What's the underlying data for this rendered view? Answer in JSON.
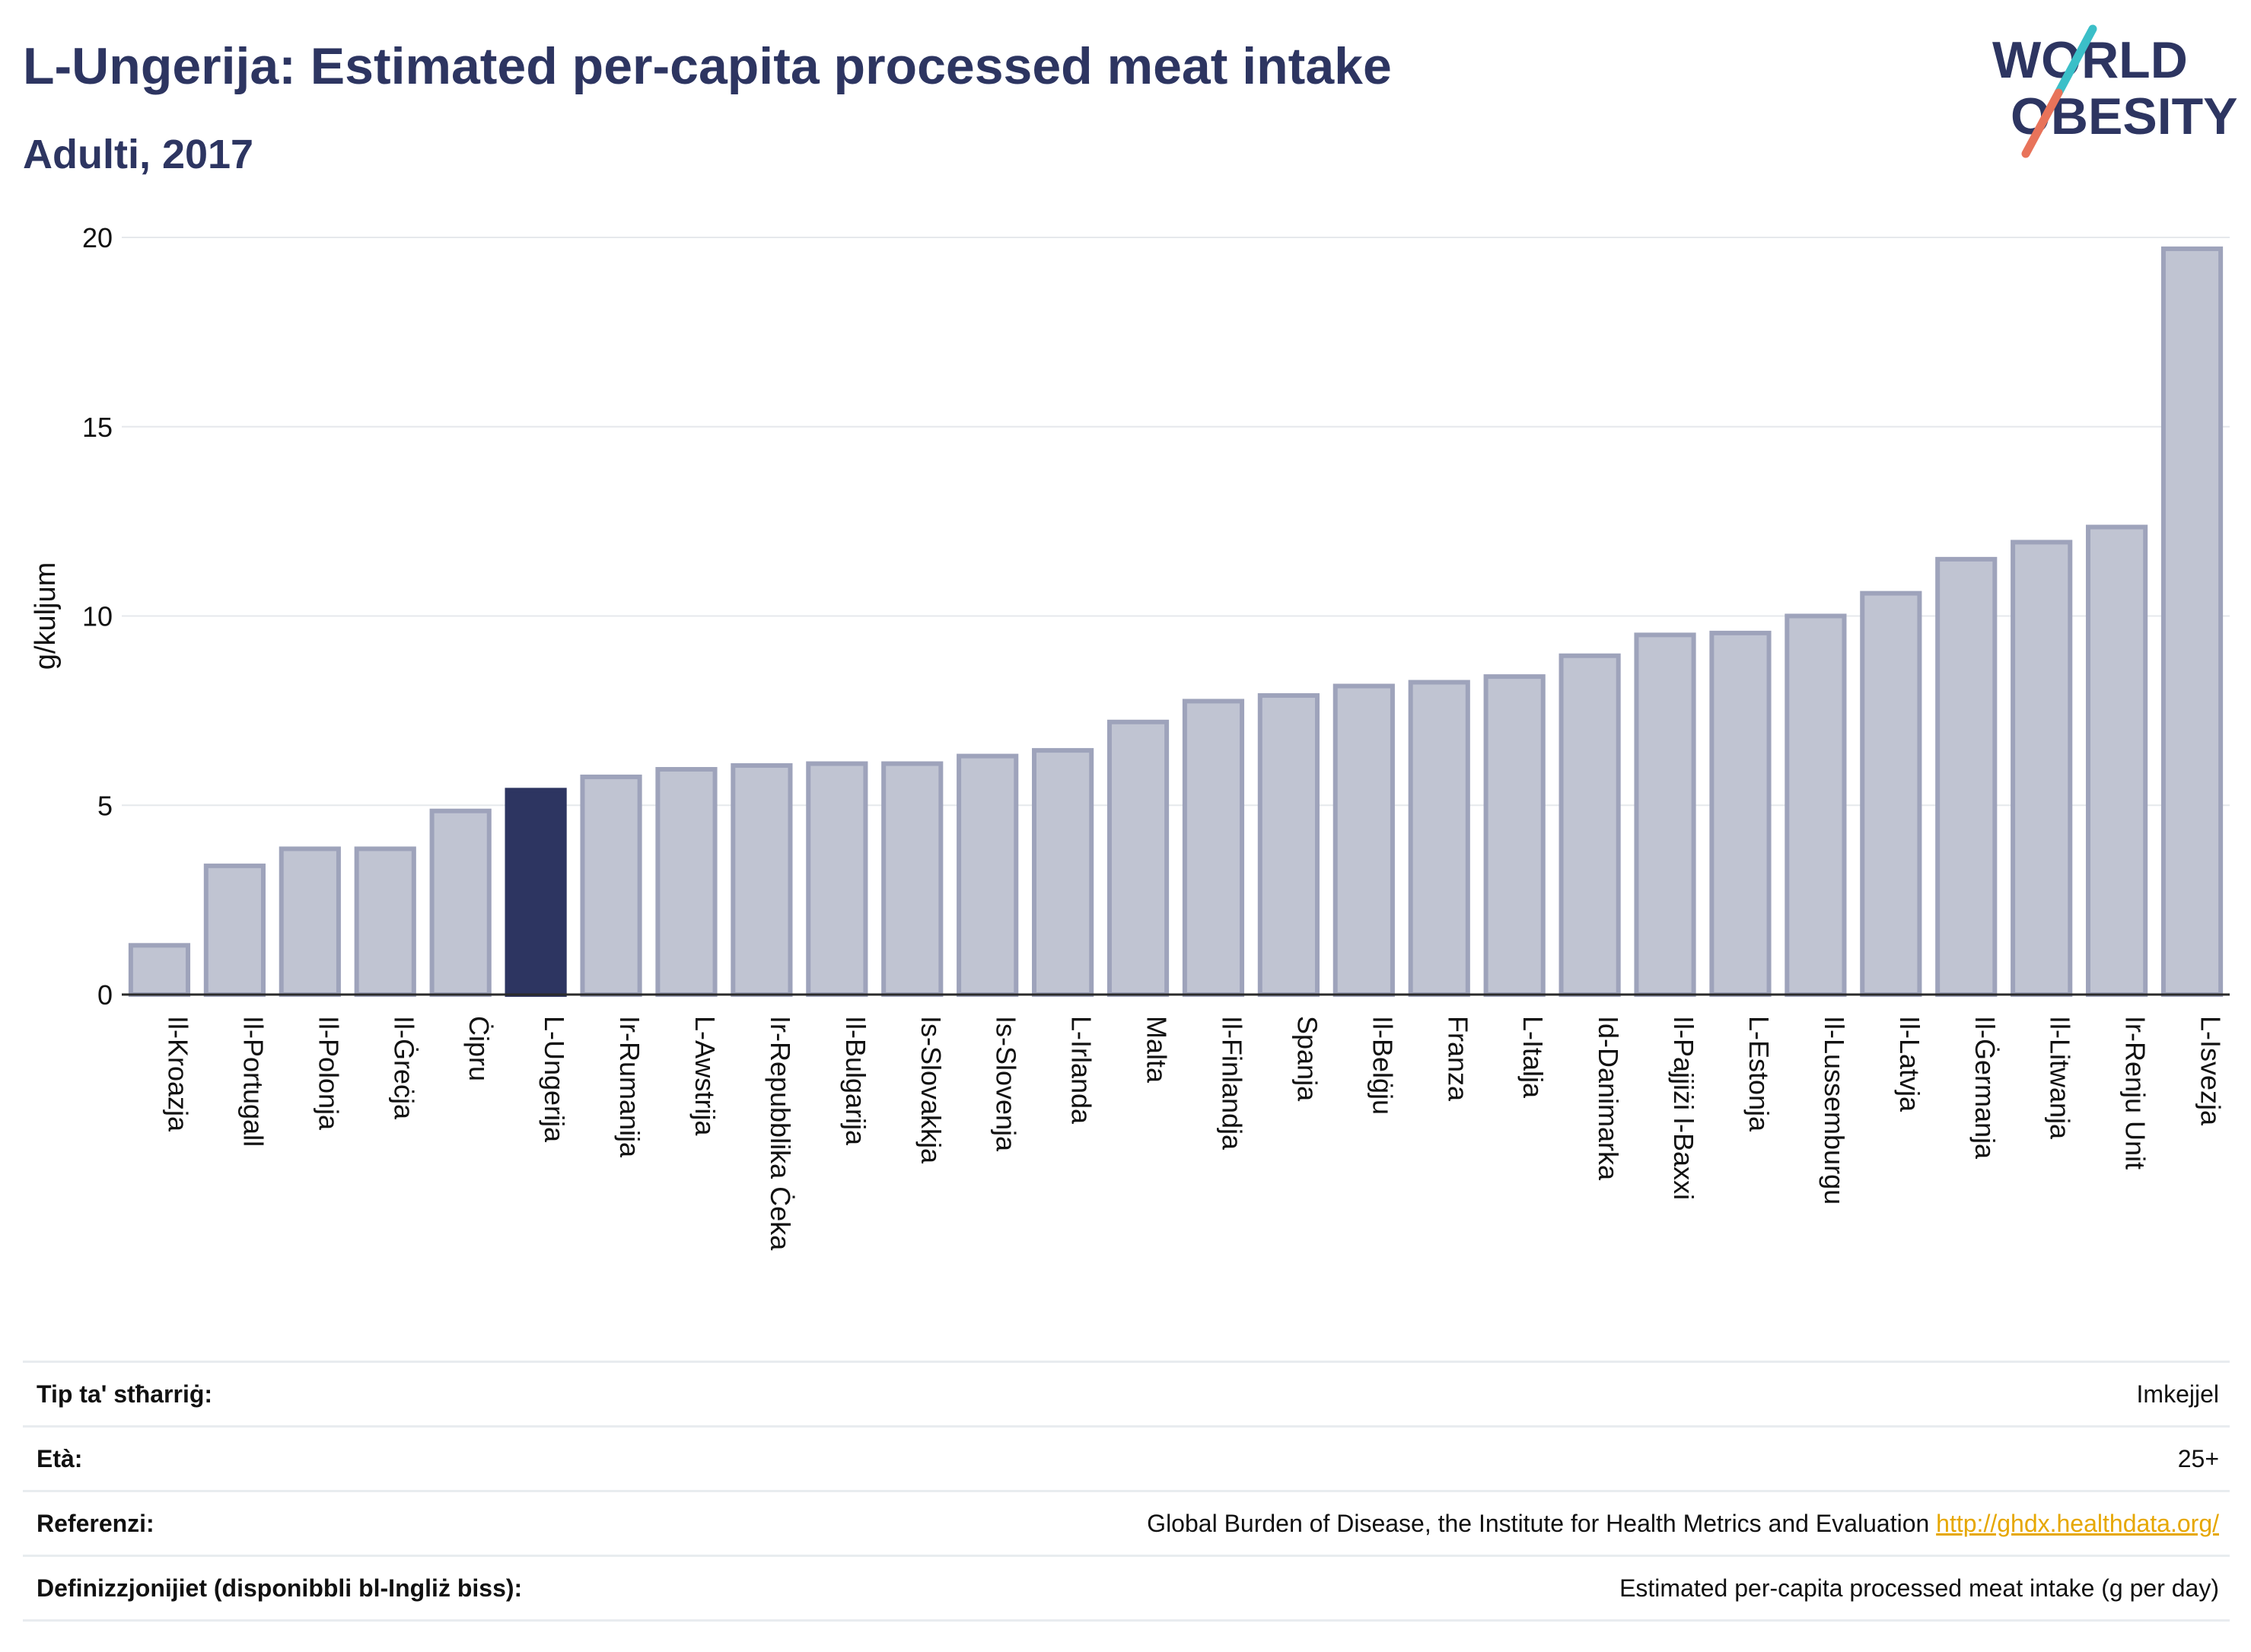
{
  "header": {
    "title": "L-Ungerija: Estimated per-capita processed meat intake",
    "subtitle": "Adulti, 2017"
  },
  "logo": {
    "line1": "WORLD",
    "line2": "OBESITY"
  },
  "colors": {
    "highlight": "#2d3561",
    "bar_fill": "#c0c4d2",
    "bar_stroke": "#9ea3bb",
    "axis": "#2b2b2b",
    "grid": "#e6e8ec",
    "link": "#e6a700"
  },
  "chart_data": {
    "type": "bar",
    "title": "L-Ungerija: Estimated per-capita processed meat intake",
    "subtitle": "Adulti, 2017",
    "ylabel": "g/kuljum",
    "xlabel": "",
    "ylim": [
      0,
      20
    ],
    "yticks": [
      0,
      5,
      10,
      15,
      20
    ],
    "grid": true,
    "highlight": "L-Ungerija",
    "categories": [
      "Il-Kroazja",
      "Il-Portugall",
      "Il-Polonja",
      "Il-Ġreċja",
      "Ċipru",
      "L-Ungerija",
      "Ir-Rumanija",
      "L-Awstrija",
      "Ir-Repubblika Ċeka",
      "Il-Bulgarija",
      "Is-Slovakkja",
      "Is-Slovenja",
      "L-Irlanda",
      "Malta",
      "Il-Finlandja",
      "Spanja",
      "Il-Belġju",
      "Franza",
      "L-Italja",
      "Id-Danimarka",
      "Il-Pajjiżi l-Baxxi",
      "L-Estonja",
      "Il-Lussemburgu",
      "Il-Latvja",
      "Il-Ġermanja",
      "Il-Litwanja",
      "Ir-Renju Unit",
      "L-Isvezja"
    ],
    "values": [
      1.3,
      3.4,
      3.85,
      3.85,
      4.85,
      5.4,
      5.75,
      5.95,
      6.05,
      6.1,
      6.1,
      6.3,
      6.45,
      7.2,
      7.75,
      7.9,
      8.15,
      8.25,
      8.4,
      8.95,
      9.5,
      9.55,
      10.0,
      10.6,
      11.5,
      11.95,
      12.35,
      19.7
    ]
  },
  "info": [
    {
      "label": "Tip ta' stħarriġ:",
      "value": "Imkejjel"
    },
    {
      "label": "Età:",
      "value": "25+"
    },
    {
      "label": "Referenzi:",
      "value": "Global Burden of Disease, the Institute for Health Metrics and Evaluation",
      "link": "http://ghdx.healthdata.org/"
    },
    {
      "label": "Definizzjonijiet (disponibbli bl-Ingliż biss):",
      "value": "Estimated per-capita processed meat intake (g per day)"
    }
  ]
}
